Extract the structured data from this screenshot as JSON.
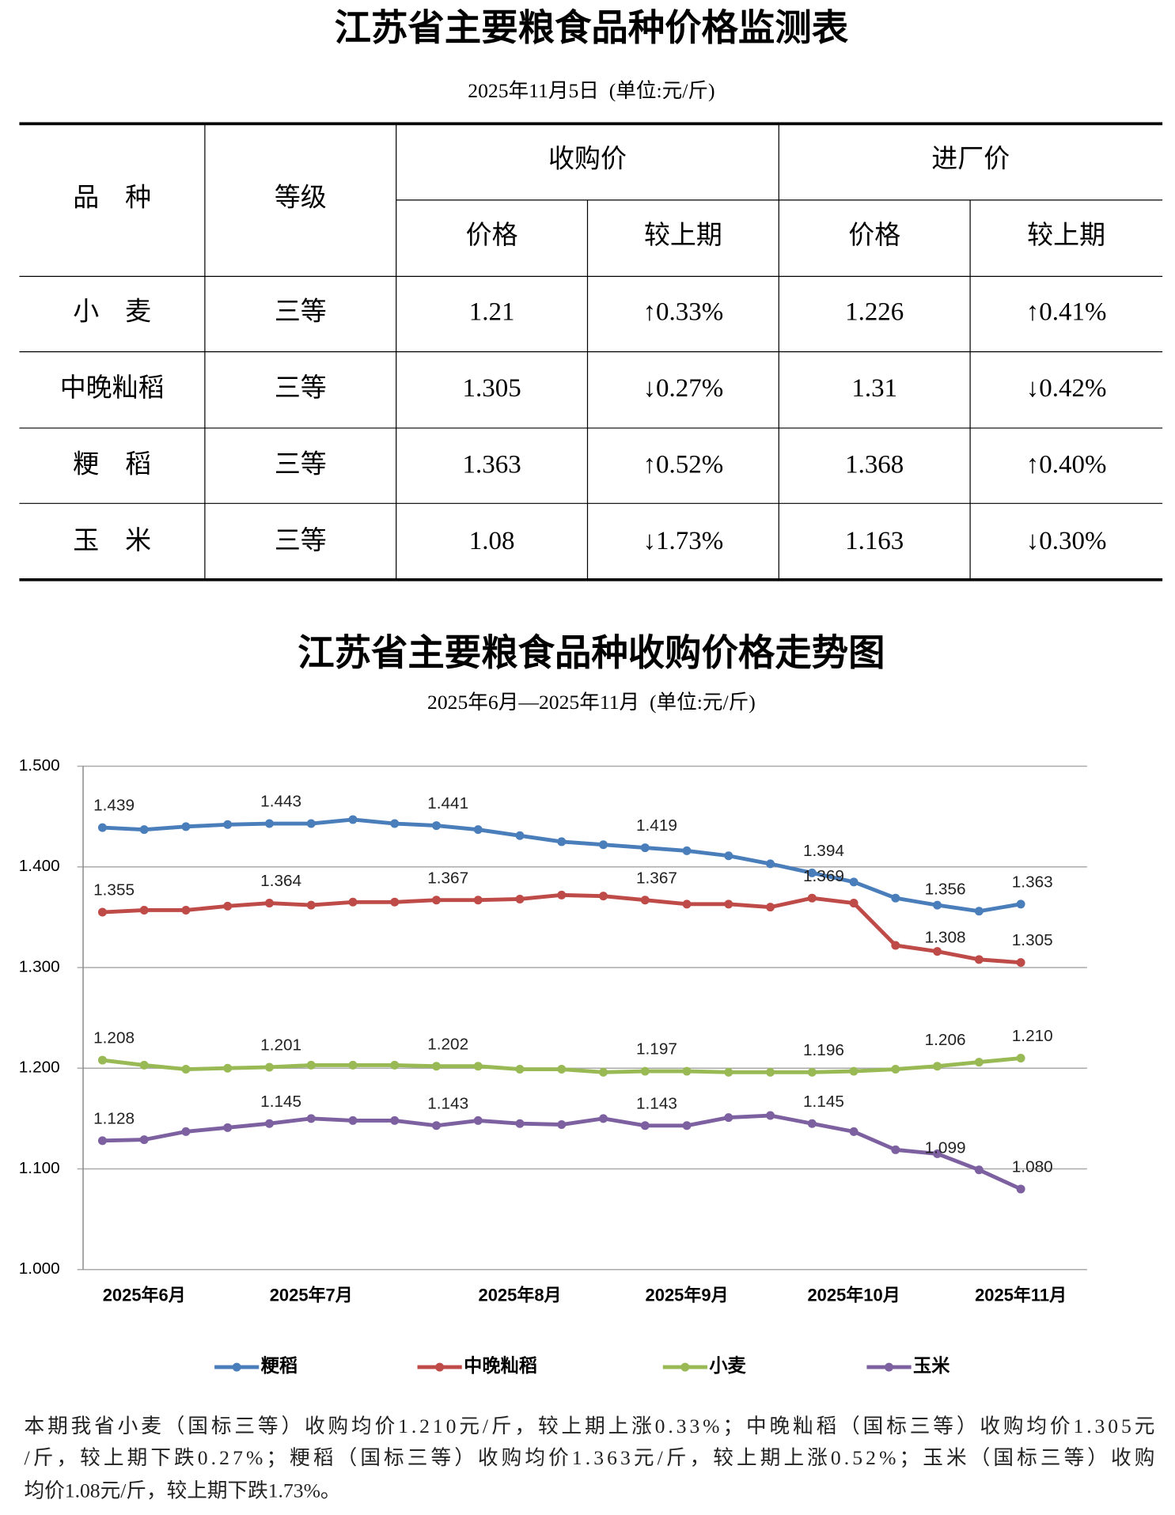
{
  "header": {
    "title": "江苏省主要粮食品种价格监测表",
    "subtitle": "2025年11月5日  (单位:元/斤)"
  },
  "table": {
    "header1": [
      "品    种",
      "等级",
      "收购价",
      "进厂价"
    ],
    "header2": [
      "价格",
      "较上期",
      "价格",
      "较上期"
    ],
    "rows": [
      [
        "小    麦",
        "三等",
        "1.21",
        "↑0.33%",
        "1.226",
        "↑0.41%"
      ],
      [
        "中晚籼稻",
        "三等",
        "1.305",
        "↓0.27%",
        "1.31",
        "↓0.42%"
      ],
      [
        "粳    稻",
        "三等",
        "1.363",
        "↑0.52%",
        "1.368",
        "↑0.40%"
      ],
      [
        "玉    米",
        "三等",
        "1.08",
        "↓1.73%",
        "1.163",
        "↓0.30%"
      ]
    ]
  },
  "chart_data": {
    "type": "line",
    "title": "江苏省主要粮食品种收购价格走势图",
    "subtitle": "2025年6月—2025年11月  (单位:元/斤)",
    "categories": [
      null,
      "2025年6月",
      null,
      null,
      null,
      "2025年7月",
      null,
      null,
      null,
      null,
      "2025年8月",
      null,
      null,
      null,
      "2025年9月",
      null,
      null,
      null,
      "2025年10月",
      null,
      null,
      null,
      "2025年11月"
    ],
    "ylim": [
      1.0,
      1.5
    ],
    "yticks": [
      {
        "value": 1.0,
        "label": "1.000"
      },
      {
        "value": 1.1,
        "label": "1.100"
      },
      {
        "value": 1.2,
        "label": "1.200"
      },
      {
        "value": 1.3,
        "label": "1.300"
      },
      {
        "value": 1.4,
        "label": "1.400"
      },
      {
        "value": 1.5,
        "label": "1.500"
      }
    ],
    "grid": true,
    "legend": "bottom",
    "series": [
      {
        "name": "粳稻",
        "color": "#4a7ebb",
        "values": [
          1.439,
          1.437,
          1.44,
          1.442,
          1.443,
          1.443,
          1.447,
          1.443,
          1.441,
          1.437,
          1.431,
          1.425,
          1.422,
          1.419,
          1.416,
          1.411,
          1.403,
          1.394,
          1.385,
          1.369,
          1.362,
          1.356,
          1.363
        ],
        "value_labels": [
          "1.439",
          null,
          null,
          null,
          "1.443",
          null,
          null,
          null,
          "1.441",
          null,
          null,
          null,
          null,
          "1.419",
          null,
          null,
          null,
          "1.394",
          null,
          null,
          null,
          "1.356",
          "1.363"
        ]
      },
      {
        "name": "中晚籼稻",
        "color": "#be4b48",
        "values": [
          1.355,
          1.357,
          1.357,
          1.361,
          1.364,
          1.362,
          1.365,
          1.365,
          1.367,
          1.367,
          1.368,
          1.372,
          1.371,
          1.367,
          1.363,
          1.363,
          1.36,
          1.369,
          1.364,
          1.322,
          1.316,
          1.308,
          1.305
        ],
        "value_labels": [
          "1.355",
          null,
          null,
          null,
          "1.364",
          null,
          null,
          null,
          "1.367",
          null,
          null,
          null,
          null,
          "1.367",
          null,
          null,
          null,
          "1.369",
          null,
          null,
          null,
          "1.308",
          "1.305"
        ]
      },
      {
        "name": "小麦",
        "color": "#98b954",
        "values": [
          1.208,
          1.203,
          1.199,
          1.2,
          1.201,
          1.203,
          1.203,
          1.203,
          1.202,
          1.202,
          1.199,
          1.199,
          1.196,
          1.197,
          1.197,
          1.196,
          1.196,
          1.196,
          1.197,
          1.199,
          1.202,
          1.206,
          1.21
        ],
        "value_labels": [
          "1.208",
          null,
          null,
          null,
          "1.201",
          null,
          null,
          null,
          "1.202",
          null,
          null,
          null,
          null,
          "1.197",
          null,
          null,
          null,
          "1.196",
          null,
          null,
          null,
          "1.206",
          "1.210"
        ]
      },
      {
        "name": "玉米",
        "color": "#7d60a0",
        "values": [
          1.128,
          1.129,
          1.137,
          1.141,
          1.145,
          1.15,
          1.148,
          1.148,
          1.143,
          1.148,
          1.145,
          1.144,
          1.15,
          1.143,
          1.143,
          1.151,
          1.153,
          1.145,
          1.137,
          1.119,
          1.115,
          1.099,
          1.08
        ],
        "value_labels": [
          "1.128",
          null,
          null,
          null,
          "1.145",
          null,
          null,
          null,
          "1.143",
          null,
          null,
          null,
          null,
          "1.143",
          null,
          null,
          null,
          "1.145",
          null,
          null,
          null,
          "1.099",
          "1.080"
        ]
      }
    ]
  },
  "footer": [
    "本期我省小麦（国标三等）收购均价1.210元/斤，较上期上涨0.33%；中晚籼稻（国标三等）收购均价1.305元",
    "/斤，较上期下跌0.27%；粳稻（国标三等）收购均价1.363元/斤，较上期上涨0.52%；玉米（国标三等）收购",
    "均价1.08元/斤，较上期下跌1.73%。"
  ]
}
